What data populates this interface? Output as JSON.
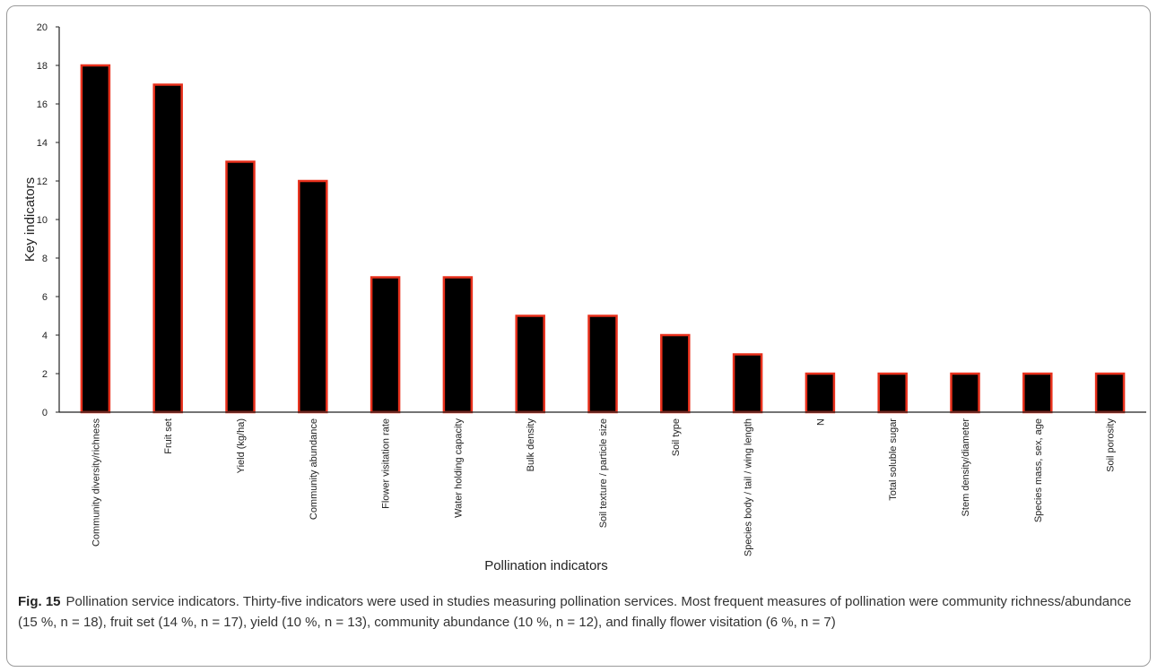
{
  "chart_data": {
    "type": "bar",
    "categories": [
      "Community diversity/richness",
      "Fruit set",
      "Yield (kg/ha)",
      "Community abundance",
      "Flower visitation rate",
      "Water holding capacity",
      "Bulk density",
      "Soil texture / particle size",
      "Soil type",
      "Species body / tail / wing length",
      "N",
      "Total soluble sugar",
      "Stem density/diameter",
      "Species mass, sex, age",
      "Soil porosity"
    ],
    "values": [
      18,
      17,
      13,
      12,
      7,
      7,
      5,
      5,
      4,
      3,
      2,
      2,
      2,
      2,
      2
    ],
    "xlabel": "Pollination indicators",
    "ylabel": "Key indicators",
    "ylim": [
      0,
      20
    ],
    "yticks": [
      0,
      2,
      4,
      6,
      8,
      10,
      12,
      14,
      16,
      18,
      20
    ],
    "grid": false,
    "bar_fill": "#000000",
    "bar_edge": "#e8301c"
  },
  "caption": {
    "label": "Fig. 15",
    "text": "Pollination service indicators. Thirty-five indicators were used in studies measuring pollination services. Most frequent measures of pollination were community richness/abundance (15 %, n = 18), fruit set (14 %, n = 17), yield (10 %, n = 13), community abundance (10 %, n = 12), and finally flower visitation (6 %, n = 7)"
  }
}
